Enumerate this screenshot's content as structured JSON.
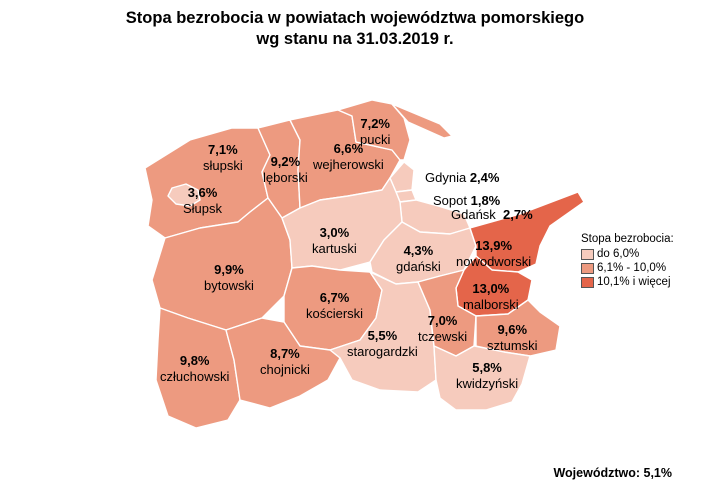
{
  "title_line1": "Stopa bezrobocia w powiatach województwa pomorskiego",
  "title_line2": "wg stanu na 31.03.2019 r.",
  "colors": {
    "low": "#f6cbbd",
    "mid": "#ed9a80",
    "high": "#e4654a"
  },
  "regions": {
    "slupski": {
      "name": "słupski",
      "value": "7,1%",
      "class": "mid"
    },
    "slupsk": {
      "name": "Słupsk",
      "value": "3,6%",
      "class": "low"
    },
    "leborski": {
      "name": "lęborski",
      "value": "9,2%",
      "class": "mid"
    },
    "wejherowski": {
      "name": "wejherowski",
      "value": "6,6%",
      "class": "mid"
    },
    "pucki": {
      "name": "pucki",
      "value": "7,2%",
      "class": "mid"
    },
    "bytowski": {
      "name": "bytowski",
      "value": "9,9%",
      "class": "mid"
    },
    "kartuski": {
      "name": "kartuski",
      "value": "3,0%",
      "class": "low"
    },
    "gdanski": {
      "name": "gdański",
      "value": "4,3%",
      "class": "low"
    },
    "nowodworski": {
      "name": "nowodworski",
      "value": "13,9%",
      "class": "high"
    },
    "malborski": {
      "name": "malborski",
      "value": "13,0%",
      "class": "high"
    },
    "koscierski": {
      "name": "kościerski",
      "value": "6,7%",
      "class": "mid"
    },
    "starogardzki": {
      "name": "starogardzki",
      "value": "5,5%",
      "class": "low"
    },
    "tczewski": {
      "name": "tczewski",
      "value": "7,0%",
      "class": "mid"
    },
    "sztumski": {
      "name": "sztumski",
      "value": "9,6%",
      "class": "mid"
    },
    "kwidzynski": {
      "name": "kwidzyński",
      "value": "5,8%",
      "class": "low"
    },
    "czluchowski": {
      "name": "człuchowski",
      "value": "9,8%",
      "class": "mid"
    },
    "chojnicki": {
      "name": "chojnicki",
      "value": "8,7%",
      "class": "mid"
    },
    "gdynia": {
      "name": "Gdynia",
      "value": "2,4%",
      "class": "low"
    },
    "sopot": {
      "name": "Sopot",
      "value": "1,8%",
      "class": "low"
    },
    "gdansk": {
      "name": "Gdańsk",
      "value": "2,7%",
      "class": "low"
    }
  },
  "legend": {
    "title": "Stopa bezrobocia:",
    "items": [
      {
        "label": "do 6,0%",
        "color": "#f6cbbd"
      },
      {
        "label": "6,1% - 10,0%",
        "color": "#ed9a80"
      },
      {
        "label": "10,1% i więcej",
        "color": "#e4654a"
      }
    ]
  },
  "footer": "Województwo: 5,1%"
}
